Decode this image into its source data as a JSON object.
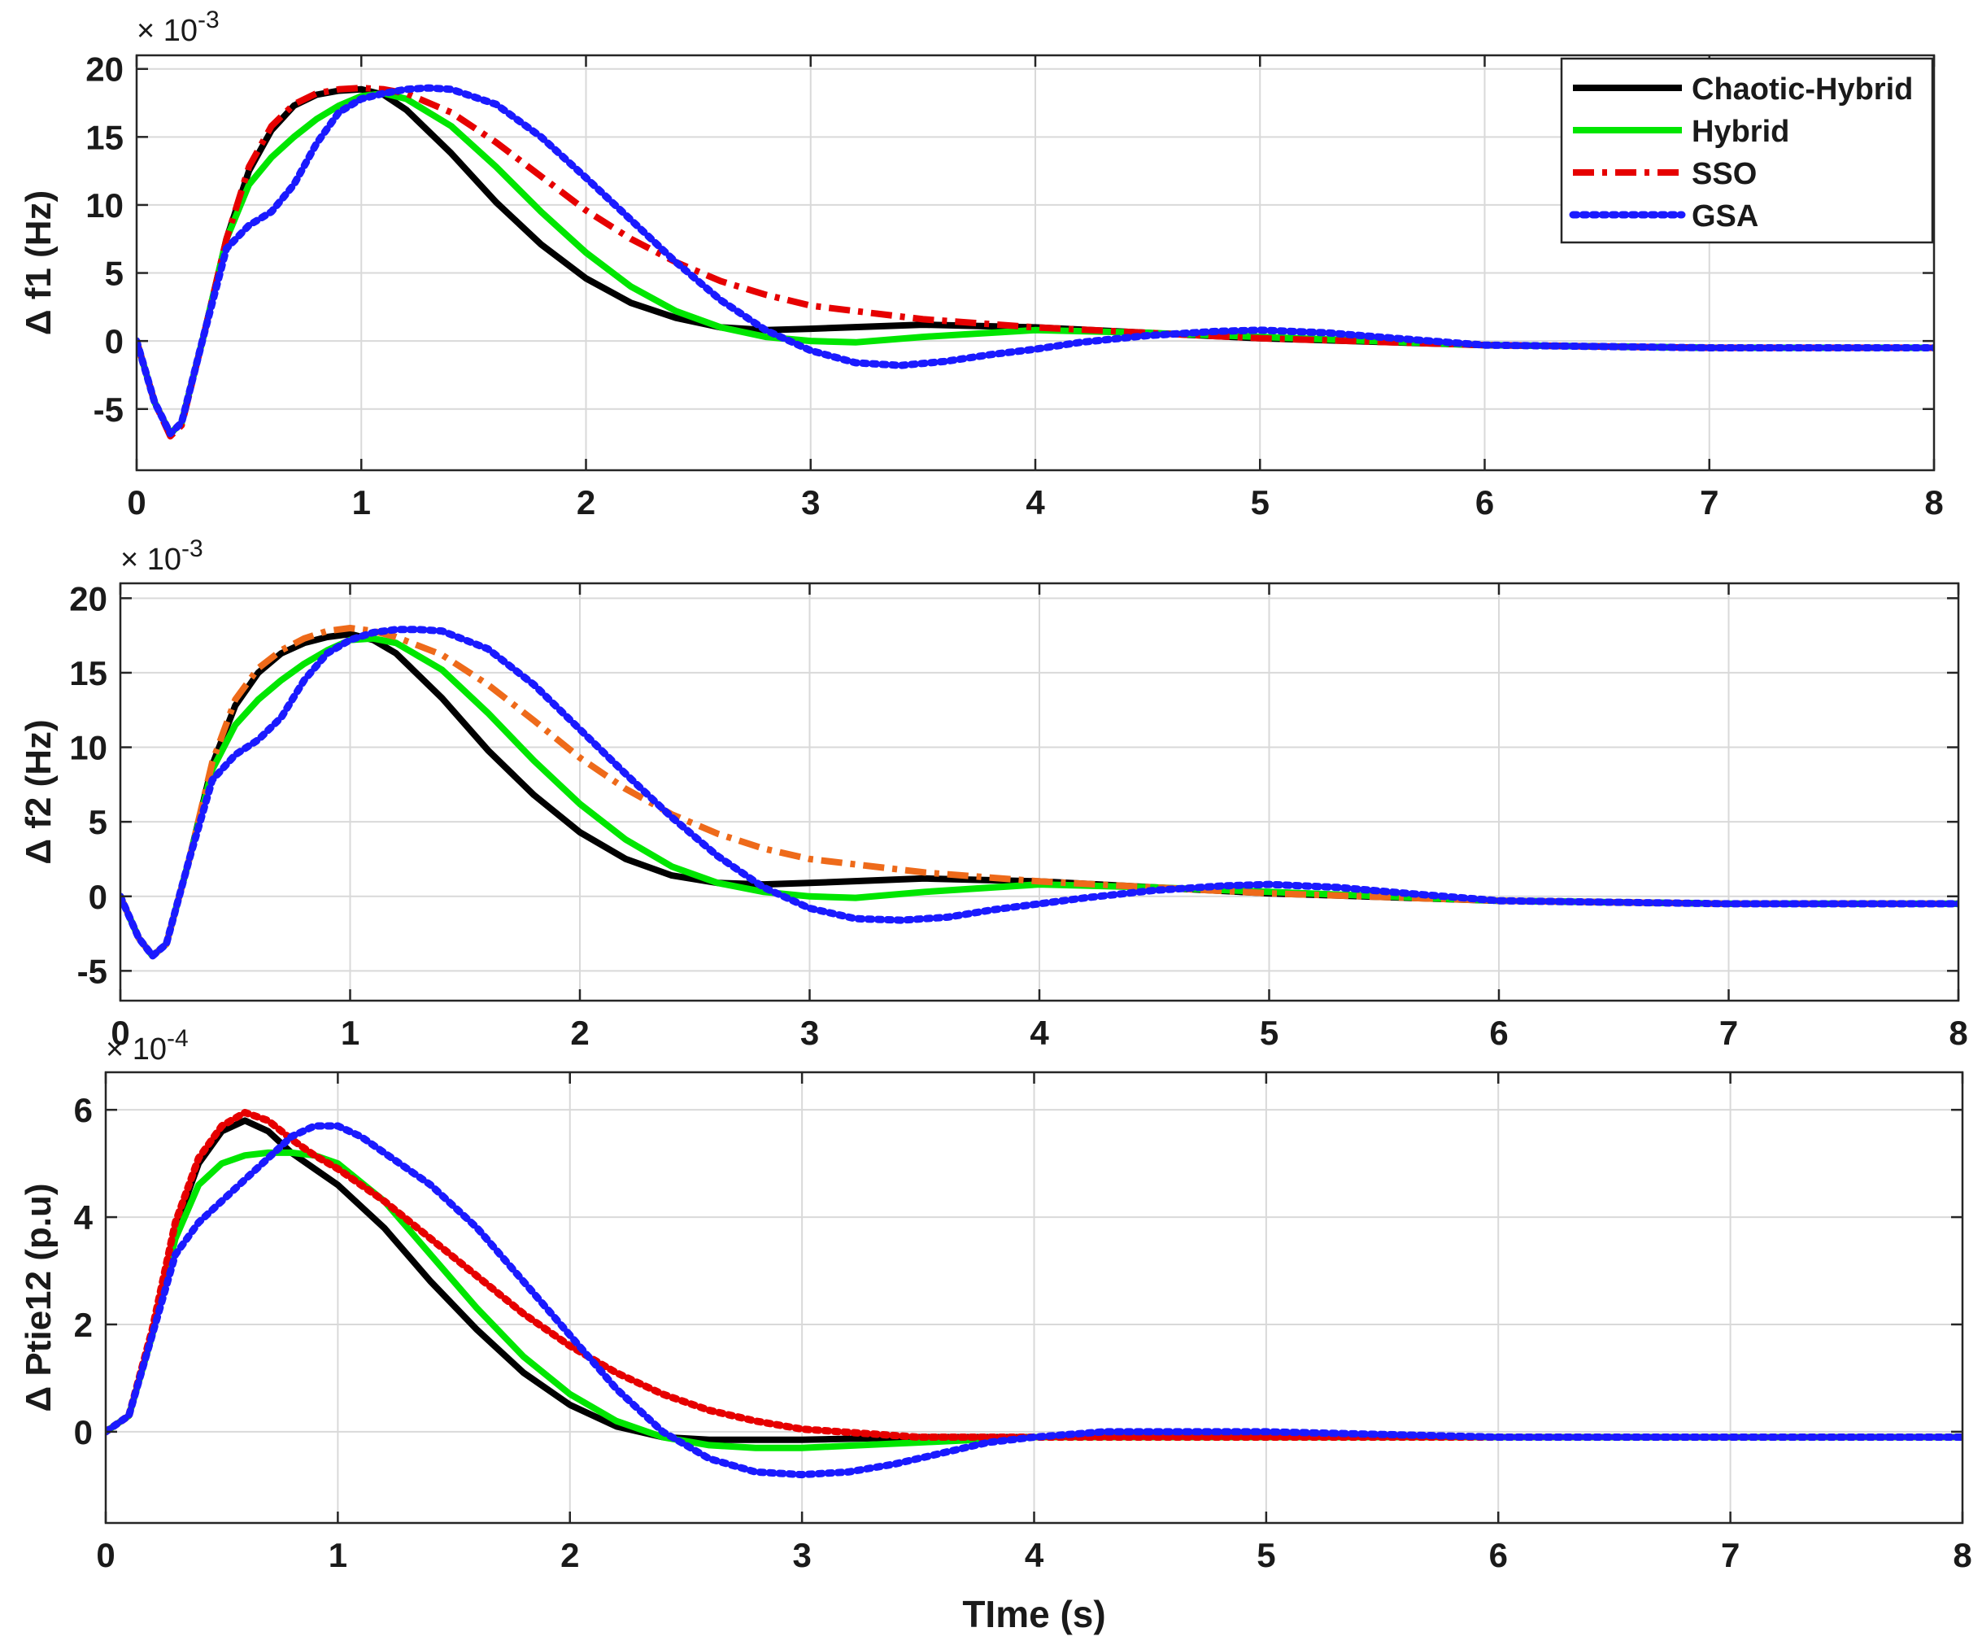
{
  "figure": {
    "xlabel": "TIme (s)"
  },
  "legend": {
    "position": "top-right of first panel",
    "entries": [
      {
        "name": "Chaotic-Hybrid",
        "color": "#000000",
        "style": "solid"
      },
      {
        "name": "Hybrid",
        "color": "#00e600",
        "style": "solid"
      },
      {
        "name": "SSO",
        "color": "#e60000",
        "style": "dashdot"
      },
      {
        "name": "GSA",
        "color": "#1a1aff",
        "style": "dotted"
      }
    ]
  },
  "chart_data": [
    {
      "type": "line",
      "ylabel": "Δ f1 (Hz)",
      "exponent": "-3",
      "xlim": [
        0,
        8
      ],
      "ylim": [
        -9.5,
        21
      ],
      "xticks": [
        0,
        1,
        2,
        3,
        4,
        5,
        6,
        7,
        8
      ],
      "yticks": [
        -5,
        0,
        5,
        10,
        15,
        20
      ],
      "grid": true,
      "series": [
        {
          "name": "Chaotic-Hybrid",
          "color": "#000000",
          "style": "solid",
          "x": [
            0,
            0.08,
            0.15,
            0.2,
            0.3,
            0.4,
            0.5,
            0.6,
            0.7,
            0.8,
            0.9,
            1.0,
            1.1,
            1.2,
            1.4,
            1.6,
            1.8,
            2.0,
            2.2,
            2.4,
            2.6,
            2.8,
            3.0,
            3.5,
            4.0,
            4.5,
            5.0,
            6.0,
            7.0,
            8.0
          ],
          "y": [
            0,
            -4.5,
            -6.8,
            -6.0,
            0.5,
            7.5,
            12.5,
            15.5,
            17.3,
            18.1,
            18.4,
            18.5,
            18.1,
            17.0,
            13.8,
            10.2,
            7.1,
            4.6,
            2.8,
            1.7,
            1.0,
            0.8,
            0.9,
            1.2,
            1.0,
            0.6,
            0.2,
            -0.3,
            -0.5,
            -0.5
          ]
        },
        {
          "name": "Hybrid",
          "color": "#00e600",
          "style": "solid",
          "x": [
            0,
            0.08,
            0.15,
            0.2,
            0.3,
            0.4,
            0.5,
            0.6,
            0.7,
            0.8,
            0.9,
            1.0,
            1.1,
            1.2,
            1.4,
            1.6,
            1.8,
            2.0,
            2.2,
            2.4,
            2.6,
            2.8,
            3.0,
            3.2,
            3.5,
            4.0,
            4.5,
            5.0,
            6.0,
            7.0,
            8.0
          ],
          "y": [
            0,
            -4.5,
            -6.8,
            -6.0,
            0.5,
            7.5,
            11.5,
            13.5,
            15.0,
            16.3,
            17.3,
            18.0,
            18.2,
            17.8,
            15.8,
            12.8,
            9.5,
            6.5,
            4.0,
            2.2,
            1.0,
            0.3,
            0.0,
            -0.1,
            0.3,
            0.8,
            0.6,
            0.3,
            -0.3,
            -0.5,
            -0.5
          ]
        },
        {
          "name": "SSO",
          "color": "#e60000",
          "style": "dashdot",
          "x": [
            0,
            0.08,
            0.15,
            0.2,
            0.3,
            0.4,
            0.5,
            0.6,
            0.7,
            0.8,
            0.9,
            1.0,
            1.1,
            1.2,
            1.4,
            1.6,
            1.8,
            2.0,
            2.2,
            2.4,
            2.6,
            2.8,
            3.0,
            3.5,
            4.0,
            4.5,
            5.0,
            6.0,
            7.0,
            8.0
          ],
          "y": [
            0,
            -4.5,
            -7.0,
            -6.2,
            0.5,
            7.5,
            12.8,
            15.8,
            17.4,
            18.2,
            18.5,
            18.6,
            18.5,
            18.2,
            16.8,
            14.6,
            12.1,
            9.6,
            7.5,
            5.8,
            4.4,
            3.4,
            2.6,
            1.6,
            1.0,
            0.6,
            0.2,
            -0.3,
            -0.5,
            -0.5
          ]
        },
        {
          "name": "GSA",
          "color": "#1a1aff",
          "style": "dotted",
          "x": [
            0,
            0.08,
            0.15,
            0.2,
            0.3,
            0.4,
            0.5,
            0.6,
            0.7,
            0.8,
            0.9,
            1.0,
            1.1,
            1.2,
            1.3,
            1.4,
            1.6,
            1.8,
            2.0,
            2.2,
            2.4,
            2.6,
            2.8,
            3.0,
            3.2,
            3.4,
            3.6,
            3.8,
            4.0,
            4.2,
            4.5,
            4.8,
            5.0,
            5.3,
            5.6,
            6.0,
            7.0,
            8.0
          ],
          "y": [
            0,
            -4.5,
            -6.8,
            -6.0,
            0.5,
            6.8,
            8.5,
            9.5,
            11.5,
            14.5,
            16.8,
            17.8,
            18.2,
            18.5,
            18.6,
            18.5,
            17.4,
            15.0,
            12.0,
            8.9,
            5.8,
            3.0,
            0.8,
            -0.7,
            -1.6,
            -1.8,
            -1.5,
            -1.0,
            -0.6,
            -0.1,
            0.4,
            0.7,
            0.8,
            0.6,
            0.2,
            -0.3,
            -0.5,
            -0.5
          ]
        }
      ]
    },
    {
      "type": "line",
      "ylabel": "Δ f2 (Hz)",
      "exponent": "-3",
      "xlim": [
        0,
        8
      ],
      "ylim": [
        -7,
        21
      ],
      "xticks": [
        0,
        1,
        2,
        3,
        4,
        5,
        6,
        7,
        8
      ],
      "yticks": [
        -5,
        0,
        5,
        10,
        15,
        20
      ],
      "grid": true,
      "series": [
        {
          "name": "Chaotic-Hybrid",
          "color": "#000000",
          "style": "solid",
          "x": [
            0,
            0.08,
            0.14,
            0.2,
            0.3,
            0.4,
            0.5,
            0.6,
            0.7,
            0.8,
            0.9,
            1.0,
            1.1,
            1.2,
            1.4,
            1.6,
            1.8,
            2.0,
            2.2,
            2.4,
            2.6,
            2.8,
            3.0,
            3.5,
            4.0,
            4.5,
            5.0,
            6.0,
            7.0,
            8.0
          ],
          "y": [
            0,
            -2.8,
            -4.0,
            -3.2,
            2.5,
            8.8,
            12.8,
            15.0,
            16.3,
            17.0,
            17.4,
            17.6,
            17.2,
            16.3,
            13.3,
            9.8,
            6.8,
            4.3,
            2.5,
            1.4,
            0.9,
            0.8,
            0.9,
            1.2,
            1.0,
            0.6,
            0.2,
            -0.3,
            -0.5,
            -0.5
          ]
        },
        {
          "name": "Hybrid",
          "color": "#00e600",
          "style": "solid",
          "x": [
            0,
            0.08,
            0.14,
            0.2,
            0.3,
            0.4,
            0.5,
            0.6,
            0.7,
            0.8,
            0.9,
            1.0,
            1.1,
            1.2,
            1.4,
            1.6,
            1.8,
            2.0,
            2.2,
            2.4,
            2.6,
            2.8,
            3.0,
            3.2,
            3.5,
            4.0,
            4.5,
            5.0,
            6.0,
            7.0,
            8.0
          ],
          "y": [
            0,
            -2.8,
            -4.0,
            -3.2,
            2.5,
            8.5,
            11.5,
            13.2,
            14.5,
            15.6,
            16.5,
            17.2,
            17.3,
            17.0,
            15.2,
            12.3,
            9.1,
            6.2,
            3.8,
            2.0,
            0.9,
            0.3,
            0.0,
            -0.1,
            0.3,
            0.8,
            0.6,
            0.3,
            -0.3,
            -0.5,
            -0.5
          ]
        },
        {
          "name": "SSO",
          "color": "#ee6a1a",
          "style": "dashdot",
          "x": [
            0,
            0.08,
            0.14,
            0.2,
            0.3,
            0.4,
            0.5,
            0.6,
            0.7,
            0.8,
            0.9,
            1.0,
            1.1,
            1.2,
            1.4,
            1.6,
            1.8,
            2.0,
            2.2,
            2.4,
            2.6,
            2.8,
            3.0,
            3.5,
            4.0,
            4.5,
            5.0,
            6.0,
            7.0,
            8.0
          ],
          "y": [
            0,
            -2.8,
            -4.0,
            -3.2,
            2.5,
            9.0,
            13.2,
            15.3,
            16.5,
            17.3,
            17.8,
            18.0,
            17.8,
            17.4,
            16.2,
            14.2,
            11.8,
            9.3,
            7.2,
            5.5,
            4.2,
            3.2,
            2.5,
            1.6,
            1.0,
            0.6,
            0.2,
            -0.3,
            -0.5,
            -0.5
          ]
        },
        {
          "name": "GSA",
          "color": "#1a1aff",
          "style": "dotted",
          "x": [
            0,
            0.08,
            0.14,
            0.2,
            0.3,
            0.4,
            0.5,
            0.6,
            0.7,
            0.8,
            0.9,
            1.0,
            1.1,
            1.2,
            1.3,
            1.4,
            1.6,
            1.8,
            2.0,
            2.2,
            2.4,
            2.6,
            2.8,
            3.0,
            3.2,
            3.4,
            3.6,
            3.8,
            4.0,
            4.2,
            4.5,
            4.8,
            5.0,
            5.3,
            5.6,
            6.0,
            7.0,
            8.0
          ],
          "y": [
            0,
            -2.8,
            -4.0,
            -3.2,
            2.5,
            7.8,
            9.5,
            10.5,
            12.0,
            14.5,
            16.3,
            17.2,
            17.7,
            17.9,
            17.9,
            17.8,
            16.6,
            14.2,
            11.2,
            8.2,
            5.3,
            2.7,
            0.6,
            -0.8,
            -1.5,
            -1.6,
            -1.4,
            -0.9,
            -0.5,
            -0.1,
            0.4,
            0.7,
            0.8,
            0.6,
            0.2,
            -0.3,
            -0.5,
            -0.5
          ]
        }
      ]
    },
    {
      "type": "line",
      "ylabel": "Δ Ptie12 (p.u)",
      "exponent": "-4",
      "xlim": [
        0,
        8
      ],
      "ylim": [
        -1.7,
        6.7
      ],
      "xticks": [
        0,
        1,
        2,
        3,
        4,
        5,
        6,
        7,
        8
      ],
      "yticks": [
        0,
        2,
        4,
        6
      ],
      "grid": true,
      "series": [
        {
          "name": "Chaotic-Hybrid",
          "color": "#000000",
          "style": "solid",
          "x": [
            0,
            0.1,
            0.2,
            0.3,
            0.4,
            0.5,
            0.6,
            0.7,
            0.8,
            0.9,
            1.0,
            1.2,
            1.4,
            1.6,
            1.8,
            2.0,
            2.2,
            2.4,
            2.6,
            2.8,
            3.0,
            3.5,
            4.0,
            4.5,
            5.0,
            6.0,
            7.0,
            8.0
          ],
          "y": [
            0,
            0.3,
            1.8,
            3.8,
            5.0,
            5.6,
            5.8,
            5.6,
            5.2,
            4.9,
            4.6,
            3.8,
            2.8,
            1.9,
            1.1,
            0.5,
            0.1,
            -0.1,
            -0.15,
            -0.15,
            -0.15,
            -0.1,
            -0.1,
            -0.1,
            -0.1,
            -0.1,
            -0.1,
            -0.1
          ]
        },
        {
          "name": "Hybrid",
          "color": "#00e600",
          "style": "solid",
          "x": [
            0,
            0.1,
            0.2,
            0.3,
            0.4,
            0.5,
            0.6,
            0.7,
            0.8,
            0.9,
            1.0,
            1.2,
            1.4,
            1.6,
            1.8,
            2.0,
            2.2,
            2.4,
            2.6,
            2.8,
            3.0,
            3.5,
            4.0,
            4.5,
            5.0,
            6.0,
            7.0,
            8.0
          ],
          "y": [
            0,
            0.3,
            1.8,
            3.6,
            4.6,
            5.0,
            5.15,
            5.2,
            5.2,
            5.15,
            5.0,
            4.3,
            3.3,
            2.3,
            1.4,
            0.7,
            0.2,
            -0.1,
            -0.25,
            -0.3,
            -0.3,
            -0.2,
            -0.1,
            -0.1,
            -0.1,
            -0.1,
            -0.1,
            -0.1
          ]
        },
        {
          "name": "SSO",
          "color": "#e60000",
          "style": "dotted",
          "x": [
            0,
            0.1,
            0.2,
            0.3,
            0.4,
            0.5,
            0.6,
            0.7,
            0.8,
            0.9,
            1.0,
            1.2,
            1.4,
            1.6,
            1.8,
            2.0,
            2.2,
            2.4,
            2.6,
            2.8,
            3.0,
            3.5,
            4.0,
            4.5,
            5.0,
            6.0,
            7.0,
            8.0
          ],
          "y": [
            0,
            0.3,
            1.9,
            3.9,
            5.1,
            5.7,
            5.95,
            5.8,
            5.45,
            5.15,
            4.9,
            4.3,
            3.6,
            2.9,
            2.2,
            1.6,
            1.1,
            0.7,
            0.4,
            0.2,
            0.05,
            -0.1,
            -0.1,
            -0.1,
            -0.1,
            -0.1,
            -0.1,
            -0.1
          ]
        },
        {
          "name": "GSA",
          "color": "#1a1aff",
          "style": "dotted",
          "x": [
            0,
            0.1,
            0.2,
            0.3,
            0.4,
            0.5,
            0.6,
            0.7,
            0.8,
            0.9,
            1.0,
            1.1,
            1.2,
            1.4,
            1.6,
            1.8,
            2.0,
            2.2,
            2.4,
            2.6,
            2.8,
            3.0,
            3.2,
            3.4,
            3.6,
            3.8,
            4.0,
            4.3,
            4.6,
            5.0,
            5.5,
            6.0,
            7.0,
            8.0
          ],
          "y": [
            0,
            0.3,
            1.8,
            3.3,
            3.9,
            4.3,
            4.7,
            5.1,
            5.5,
            5.7,
            5.7,
            5.5,
            5.2,
            4.6,
            3.8,
            2.8,
            1.8,
            0.8,
            0.0,
            -0.5,
            -0.75,
            -0.8,
            -0.75,
            -0.6,
            -0.4,
            -0.2,
            -0.1,
            0.0,
            0.0,
            0.0,
            -0.05,
            -0.1,
            -0.1,
            -0.1
          ]
        }
      ]
    }
  ]
}
